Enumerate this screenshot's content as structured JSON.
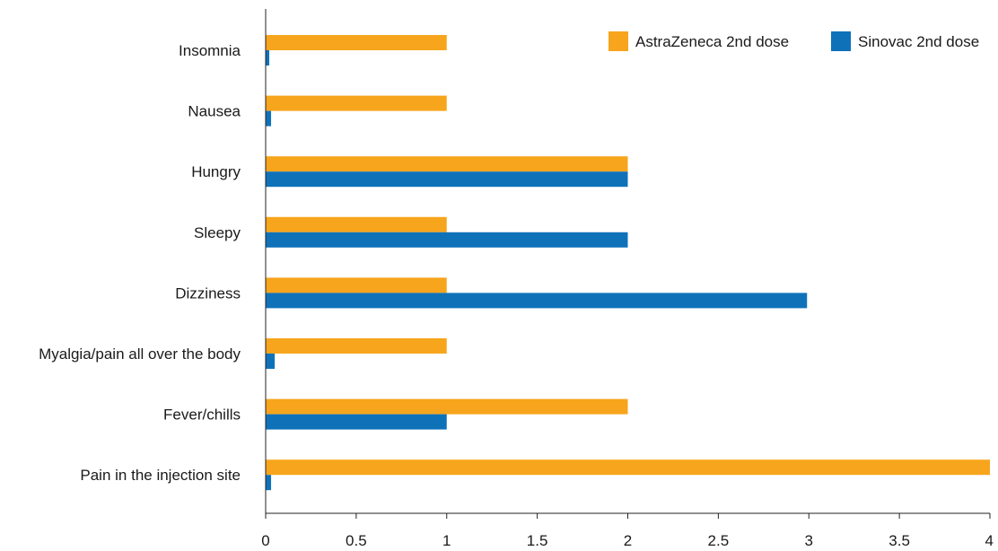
{
  "chart_data": {
    "type": "bar",
    "orientation": "horizontal",
    "categories": [
      "Insomnia",
      "Nausea",
      "Hungry",
      "Sleepy",
      "Dizziness",
      "Myalgia/pain all over the body",
      "Fever/chills",
      "Pain in the injection site"
    ],
    "series": [
      {
        "name": "AstraZeneca 2nd dose",
        "color": "#f7a51c",
        "values": [
          1,
          1,
          2,
          1,
          1,
          1,
          2,
          4
        ]
      },
      {
        "name": "Sinovac 2nd dose",
        "color": "#0f72b9",
        "values": [
          0.02,
          0.03,
          2,
          2,
          2.99,
          0.05,
          1,
          0.03
        ]
      }
    ],
    "xlim": [
      0,
      4
    ],
    "xticks": [
      "0",
      "0.5",
      "1",
      "1.5",
      "2",
      "2.5",
      "3",
      "3.5",
      "4"
    ],
    "title": "",
    "xlabel": "",
    "ylabel": "",
    "grid": false,
    "legend_position": "top-right"
  }
}
